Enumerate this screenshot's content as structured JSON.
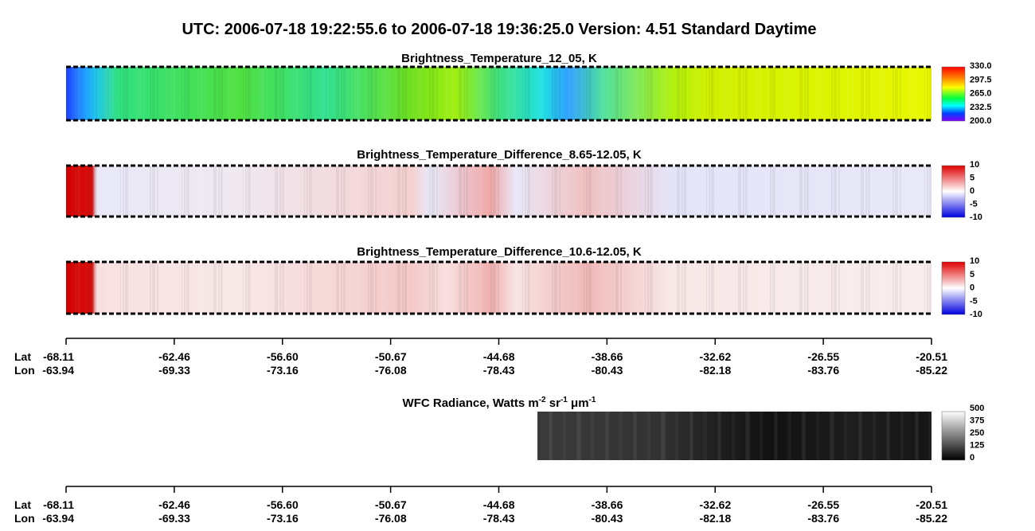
{
  "title": "UTC:  2006-07-18   19:22:55.6  to  2006-07-18   19:36:25.0    Version: 4.51  Standard Daytime",
  "panels": [
    {
      "title": "Brightness_Temperature_12_05, K",
      "colorbar_ticks": [
        "330.0",
        "297.5",
        "265.0",
        "232.5",
        "200.0"
      ]
    },
    {
      "title": "Brightness_Temperature_Difference_8.65-12.05, K",
      "colorbar_ticks": [
        "10",
        "5",
        "0",
        "-5",
        "-10"
      ]
    },
    {
      "title": "Brightness_Temperature_Difference_10.6-12.05, K",
      "colorbar_ticks": [
        "10",
        "5",
        "0",
        "-5",
        "-10"
      ]
    }
  ],
  "wfc": {
    "title_parts": [
      "WFC Radiance, Watts m",
      "-2",
      " sr",
      "-1",
      " μm",
      "-1"
    ],
    "colorbar_ticks": [
      "500",
      "375",
      "250",
      "125",
      "0"
    ]
  },
  "axis": {
    "lat_label": "Lat",
    "lon_label": "Lon",
    "lat": [
      "-68.11",
      "-62.46",
      "-56.60",
      "-50.67",
      "-44.68",
      "-38.66",
      "-32.62",
      "-26.55",
      "-20.51"
    ],
    "lon": [
      "-63.94",
      "-69.33",
      "-73.16",
      "-76.08",
      "-78.43",
      "-80.43",
      "-82.18",
      "-83.76",
      "-85.22"
    ]
  }
}
